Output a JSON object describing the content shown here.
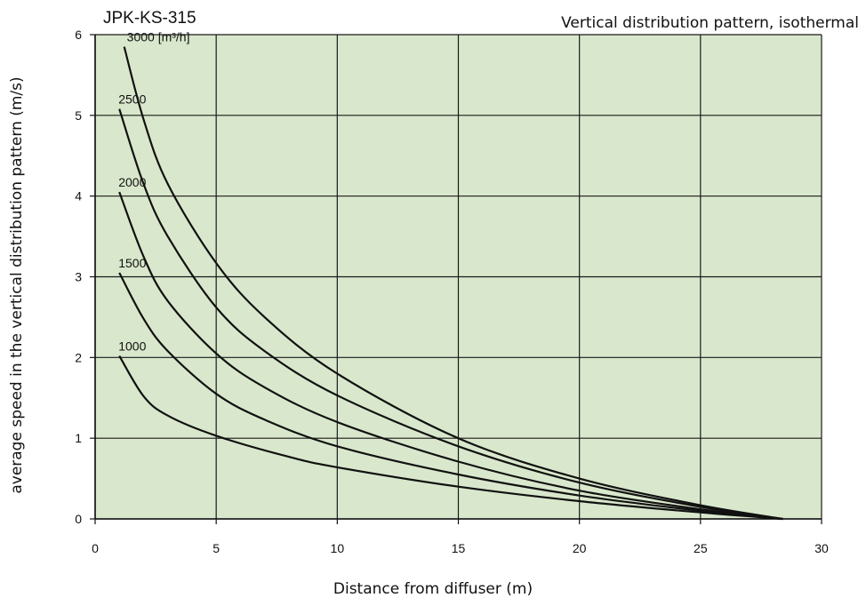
{
  "chart_data": {
    "type": "line",
    "title": "Vertical distribution pattern, isothermal",
    "subtitle": "JPK-KS-315",
    "xlabel": "Distance from diffuser (m)",
    "ylabel": "average speed in the vertical distribution pattern (m/s)",
    "xlim": [
      0,
      30
    ],
    "ylim": [
      0,
      6
    ],
    "x_ticks": [
      "0",
      "5",
      "10",
      "15",
      "20",
      "25",
      "30"
    ],
    "y_ticks": [
      "0",
      "1",
      "2",
      "3",
      "4",
      "5",
      "6"
    ],
    "grid": true,
    "plot_background": "#d9e8cc",
    "line_color": "#111111",
    "series": [
      {
        "name": "1000",
        "label": "1000",
        "points": [
          [
            1.0,
            2.02
          ],
          [
            2.0,
            1.52
          ],
          [
            3.0,
            1.28
          ],
          [
            5.0,
            1.03
          ],
          [
            8.0,
            0.77
          ],
          [
            10.0,
            0.64
          ],
          [
            15.0,
            0.4
          ],
          [
            20.0,
            0.22
          ],
          [
            25.0,
            0.08
          ],
          [
            28.4,
            0.0
          ]
        ]
      },
      {
        "name": "1500",
        "label": "1500",
        "points": [
          [
            1.0,
            3.05
          ],
          [
            2.0,
            2.48
          ],
          [
            3.0,
            2.08
          ],
          [
            5.0,
            1.55
          ],
          [
            7.0,
            1.23
          ],
          [
            10.0,
            0.9
          ],
          [
            15.0,
            0.55
          ],
          [
            20.0,
            0.29
          ],
          [
            25.0,
            0.1
          ],
          [
            28.4,
            0.0
          ]
        ]
      },
      {
        "name": "2000",
        "label": "2000",
        "points": [
          [
            1.0,
            4.05
          ],
          [
            2.0,
            3.25
          ],
          [
            3.0,
            2.7
          ],
          [
            5.0,
            2.05
          ],
          [
            7.0,
            1.63
          ],
          [
            10.0,
            1.2
          ],
          [
            15.0,
            0.71
          ],
          [
            20.0,
            0.35
          ],
          [
            25.0,
            0.12
          ],
          [
            28.4,
            0.0
          ]
        ]
      },
      {
        "name": "2500",
        "label": "2500",
        "points": [
          [
            1.0,
            5.08
          ],
          [
            2.0,
            4.15
          ],
          [
            3.0,
            3.5
          ],
          [
            5.0,
            2.62
          ],
          [
            7.0,
            2.08
          ],
          [
            10.0,
            1.53
          ],
          [
            15.0,
            0.9
          ],
          [
            20.0,
            0.45
          ],
          [
            25.0,
            0.15
          ],
          [
            28.4,
            0.0
          ]
        ]
      },
      {
        "name": "3000",
        "label": "3000 [m³/h]",
        "points": [
          [
            1.2,
            5.85
          ],
          [
            2.0,
            4.95
          ],
          [
            3.0,
            4.15
          ],
          [
            5.0,
            3.17
          ],
          [
            7.0,
            2.5
          ],
          [
            10.0,
            1.8
          ],
          [
            15.0,
            1.0
          ],
          [
            20.0,
            0.5
          ],
          [
            25.0,
            0.17
          ],
          [
            28.4,
            0.0
          ]
        ]
      }
    ]
  }
}
